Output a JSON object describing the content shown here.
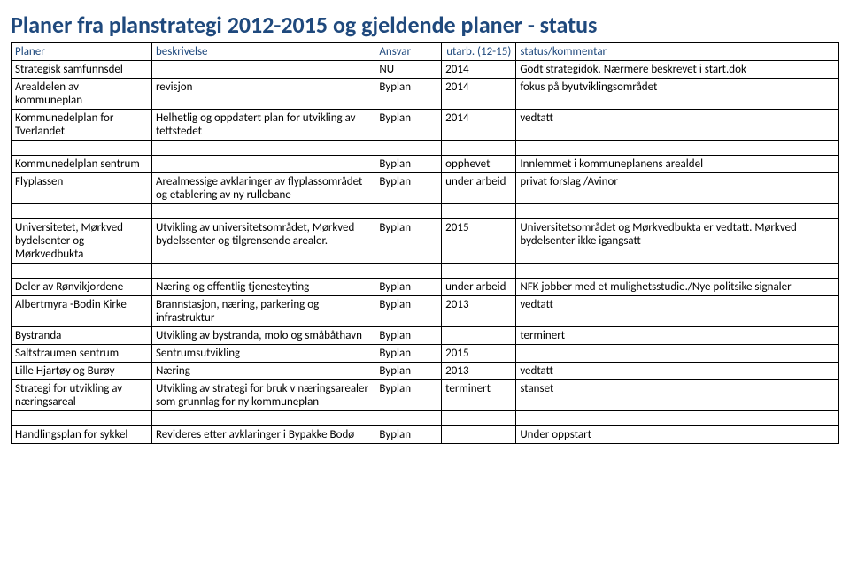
{
  "title_color": "#1f497d",
  "header_color": "#1f497d",
  "title": "Planer fra planstrategi 2012-2015 og gjeldende planer -  status",
  "columns": {
    "planer": "Planer",
    "beskrivelse": "beskrivelse",
    "ansvar": "Ansvar",
    "utarb": "utarb. (12-15)",
    "status": "status/kommentar"
  },
  "rows": [
    {
      "planer": "Strategisk samfunnsdel",
      "beskrivelse": "",
      "ansvar": "NU",
      "utarb": "2014",
      "status": "Godt strategidok. Nærmere beskrevet i start.dok"
    },
    {
      "planer": "Arealdelen av kommuneplan",
      "beskrivelse": "revisjon",
      "ansvar": "Byplan",
      "utarb": "2014",
      "status": "fokus på byutviklingsområdet"
    },
    {
      "planer": "Kommunedelplan for Tverlandet",
      "beskrivelse": "Helhetlig og oppdatert plan for utvikling av tettstedet",
      "ansvar": "Byplan",
      "utarb": "2014",
      "status": "vedtatt"
    },
    {
      "spacer": true
    },
    {
      "planer": "Kommunedelplan sentrum",
      "beskrivelse": "",
      "ansvar": "Byplan",
      "utarb": "opphevet",
      "status": "Innlemmet i kommuneplanens arealdel"
    },
    {
      "planer": "Flyplassen",
      "beskrivelse": "Arealmessige avklaringer av flyplassområdet og etablering av ny rullebane",
      "ansvar": "Byplan",
      "utarb": "under arbeid",
      "status": "privat forslag /Avinor"
    },
    {
      "spacer": true
    },
    {
      "planer": "Universitetet, Mørkved bydelsenter og Mørkvedbukta",
      "beskrivelse": "Utvikling av universitetsområdet, Mørkved bydelssenter og tilgrensende arealer.",
      "ansvar": "Byplan",
      "utarb": "2015",
      "status": "Universitetsområdet og Mørkvedbukta  er vedtatt. Mørkved bydelsenter ikke igangsatt"
    },
    {
      "spacer": true
    },
    {
      "planer": "Deler av Rønvikjordene",
      "beskrivelse": "Næring og offentlig tjenesteyting",
      "ansvar": "Byplan",
      "utarb": "under arbeid",
      "status": "NFK jobber med et mulighetsstudie./Nye politsike signaler"
    },
    {
      "planer": "Albertmyra -Bodin Kirke",
      "beskrivelse": "Brannstasjon, næring, parkering og infrastruktur",
      "ansvar": "Byplan",
      "utarb": "2013",
      "status": "vedtatt"
    },
    {
      "planer": "Bystranda",
      "beskrivelse": "Utvikling av bystranda, molo og småbåthavn",
      "ansvar": "Byplan",
      "utarb": "",
      "status": "terminert"
    },
    {
      "planer": "Saltstraumen sentrum",
      "beskrivelse": "Sentrumsutvikling",
      "ansvar": "Byplan",
      "utarb": "2015",
      "status": ""
    },
    {
      "planer": "Lille Hjartøy og Burøy",
      "beskrivelse": "Næring",
      "ansvar": "Byplan",
      "utarb": "2013",
      "status": "vedtatt"
    },
    {
      "planer": "Strategi for utvikling av næringsareal",
      "beskrivelse": "Utvikling av strategi for bruk v næringsarealer som grunnlag for ny kommuneplan",
      "ansvar": "Byplan",
      "utarb": "terminert",
      "status": "stanset"
    },
    {
      "spacer": true
    },
    {
      "planer": "Handlingsplan for sykkel",
      "beskrivelse": "Revideres etter avklaringer i Bypakke Bodø",
      "ansvar": "Byplan",
      "utarb": "",
      "status": "Under oppstart"
    }
  ]
}
